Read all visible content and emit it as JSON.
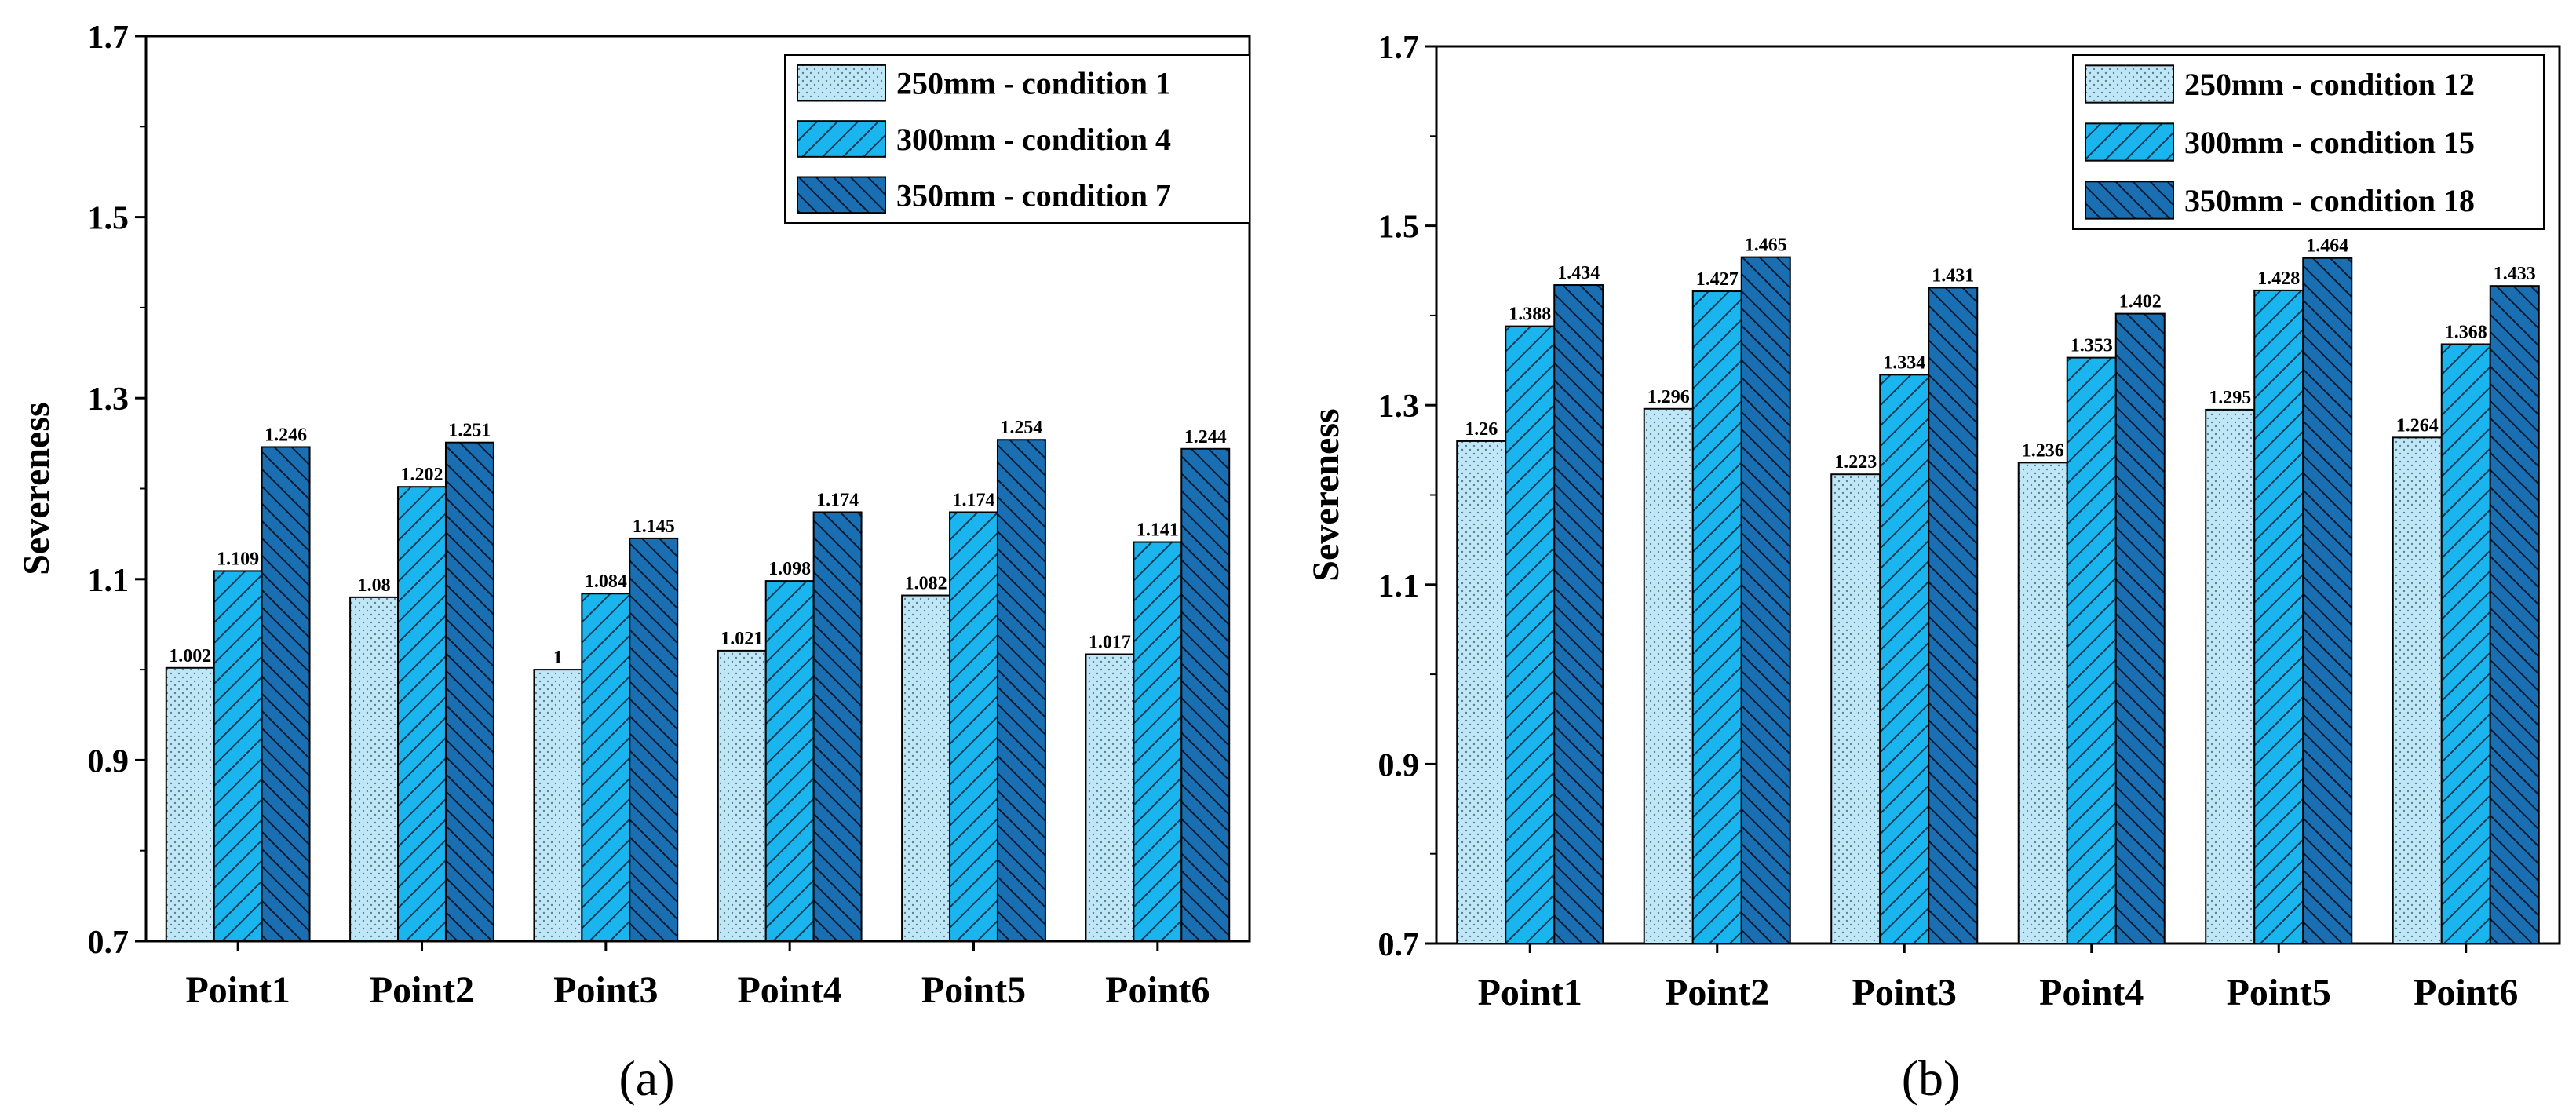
{
  "chart_data": [
    {
      "type": "bar",
      "panel_label": "(a)",
      "ylabel": "Severeness",
      "xlabel": "",
      "title": "",
      "ylim": [
        0.7,
        1.7
      ],
      "yticks": [
        0.7,
        0.9,
        1.1,
        1.3,
        1.5,
        1.7
      ],
      "ytick_labels": [
        "0.7",
        "0.9",
        "1.1",
        "1.3",
        "1.5",
        "1.7"
      ],
      "categories": [
        "Point1",
        "Point2",
        "Point3",
        "Point4",
        "Point5",
        "Point6"
      ],
      "legend_position": "top-right",
      "grid": false,
      "series": [
        {
          "name": "250mm - condition 1",
          "color": "#bfe7f7",
          "pattern": "dots",
          "values": [
            1.002,
            1.08,
            1.0,
            1.021,
            1.082,
            1.017
          ],
          "labels": [
            "1.002",
            "1.08",
            "1",
            "1.021",
            "1.082",
            "1.017"
          ]
        },
        {
          "name": "300mm - condition 4",
          "color": "#1ab4ef",
          "pattern": "forward-hatch",
          "values": [
            1.109,
            1.202,
            1.084,
            1.098,
            1.174,
            1.141
          ],
          "labels": [
            "1.109",
            "1.202",
            "1.084",
            "1.098",
            "1.174",
            "1.141"
          ]
        },
        {
          "name": "350mm - condition 7",
          "color": "#1a6fb3",
          "pattern": "back-hatch",
          "values": [
            1.246,
            1.251,
            1.145,
            1.174,
            1.254,
            1.244
          ],
          "labels": [
            "1.246",
            "1.251",
            "1.145",
            "1.174",
            "1.254",
            "1.244"
          ]
        }
      ]
    },
    {
      "type": "bar",
      "panel_label": "(b)",
      "ylabel": "Severeness",
      "xlabel": "",
      "title": "",
      "ylim": [
        0.7,
        1.7
      ],
      "yticks": [
        0.7,
        0.9,
        1.1,
        1.3,
        1.5,
        1.7
      ],
      "ytick_labels": [
        "0.7",
        "0.9",
        "1.1",
        "1.3",
        "1.5",
        "1.7"
      ],
      "categories": [
        "Point1",
        "Point2",
        "Point3",
        "Point4",
        "Point5",
        "Point6"
      ],
      "legend_position": "top-right",
      "grid": false,
      "series": [
        {
          "name": "250mm - condition 12",
          "color": "#bfe7f7",
          "pattern": "dots",
          "values": [
            1.26,
            1.296,
            1.223,
            1.236,
            1.295,
            1.264
          ],
          "labels": [
            "1.26",
            "1.296",
            "1.223",
            "1.236",
            "1.295",
            "1.264"
          ]
        },
        {
          "name": "300mm - condition 15",
          "color": "#1ab4ef",
          "pattern": "forward-hatch",
          "values": [
            1.388,
            1.427,
            1.334,
            1.353,
            1.428,
            1.368
          ],
          "labels": [
            "1.388",
            "1.427",
            "1.334",
            "1.353",
            "1.428",
            "1.368"
          ]
        },
        {
          "name": "350mm - condition 18",
          "color": "#1a6fb3",
          "pattern": "back-hatch",
          "values": [
            1.434,
            1.465,
            1.431,
            1.402,
            1.464,
            1.433
          ],
          "labels": [
            "1.434",
            "1.465",
            "1.431",
            "1.402",
            "1.464",
            "1.433"
          ]
        }
      ]
    }
  ]
}
